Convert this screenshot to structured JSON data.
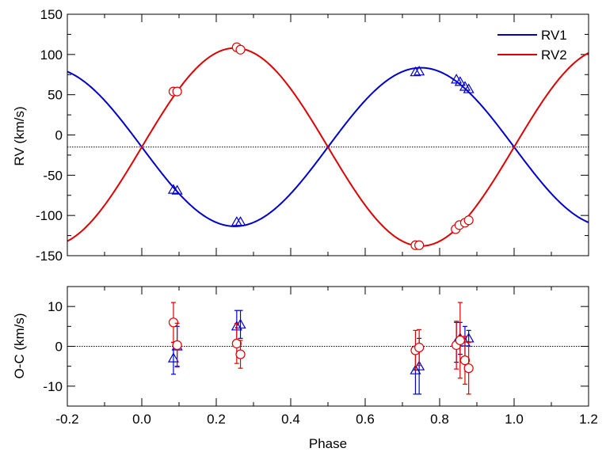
{
  "chart_data": [
    {
      "type": "line",
      "panel": "radial-velocity",
      "xlabel": "",
      "ylabel": "RV (km/s)",
      "xlim": [
        -0.2,
        1.2
      ],
      "ylim": [
        -150,
        150
      ],
      "x_ticks": [
        -0.2,
        0.0,
        0.2,
        0.4,
        0.6,
        0.8,
        1.0,
        1.2
      ],
      "y_ticks": [
        -150,
        -100,
        -50,
        0,
        50,
        100,
        150
      ],
      "y_tick_labels": [
        "-150",
        "-100",
        "-50",
        "0",
        "50",
        "100",
        "150"
      ],
      "systemic_velocity": -15,
      "legend_position": "top-right",
      "series": [
        {
          "name": "RV1",
          "color": "#0000cc",
          "marker": "triangle",
          "curve": {
            "gamma": -15,
            "amplitude": 98.5,
            "sign": -1
          },
          "points": [
            {
              "x": 0.085,
              "y": -68
            },
            {
              "x": 0.095,
              "y": -69
            },
            {
              "x": 0.255,
              "y": -108
            },
            {
              "x": 0.265,
              "y": -108
            },
            {
              "x": 0.735,
              "y": 78
            },
            {
              "x": 0.745,
              "y": 79
            },
            {
              "x": 0.845,
              "y": 69
            },
            {
              "x": 0.855,
              "y": 66
            },
            {
              "x": 0.868,
              "y": 60
            },
            {
              "x": 0.878,
              "y": 57
            }
          ]
        },
        {
          "name": "RV2",
          "color": "#dd0000",
          "marker": "circle",
          "curve": {
            "gamma": -15,
            "amplitude": 123,
            "sign": 1
          },
          "points": [
            {
              "x": 0.085,
              "y": 54
            },
            {
              "x": 0.095,
              "y": 54
            },
            {
              "x": 0.255,
              "y": 109
            },
            {
              "x": 0.265,
              "y": 106
            },
            {
              "x": 0.735,
              "y": -137
            },
            {
              "x": 0.745,
              "y": -137
            },
            {
              "x": 0.843,
              "y": -117
            },
            {
              "x": 0.853,
              "y": -112
            },
            {
              "x": 0.868,
              "y": -109
            },
            {
              "x": 0.878,
              "y": -106
            }
          ]
        }
      ]
    },
    {
      "type": "scatter",
      "panel": "residuals",
      "xlabel": "Phase",
      "ylabel": "O-C (km/s)",
      "xlim": [
        -0.2,
        1.2
      ],
      "ylim": [
        -15,
        15
      ],
      "x_ticks": [
        -0.2,
        0.0,
        0.2,
        0.4,
        0.6,
        0.8,
        1.0,
        1.2
      ],
      "x_tick_labels": [
        "-0.2",
        "0.0",
        "0.2",
        "0.4",
        "0.6",
        "0.8",
        "1.0",
        "1.2"
      ],
      "y_ticks": [
        -10,
        0,
        10
      ],
      "y_tick_labels": [
        "-10",
        "0",
        "10"
      ],
      "series": [
        {
          "name": "RV1",
          "color": "#0000cc",
          "marker": "triangle",
          "points": [
            {
              "x": 0.085,
              "y": -3,
              "err": 4
            },
            {
              "x": 0.095,
              "y": 0,
              "err": 5
            },
            {
              "x": 0.255,
              "y": 5,
              "err": 4
            },
            {
              "x": 0.265,
              "y": 5.5,
              "err": 3.5
            },
            {
              "x": 0.735,
              "y": -6,
              "err": 6
            },
            {
              "x": 0.745,
              "y": -5,
              "err": 7
            },
            {
              "x": 0.845,
              "y": 1,
              "err": 5
            },
            {
              "x": 0.855,
              "y": 2,
              "err": 4
            },
            {
              "x": 0.868,
              "y": 1,
              "err": 4
            },
            {
              "x": 0.878,
              "y": 2,
              "err": 2
            }
          ]
        },
        {
          "name": "RV2",
          "color": "#dd0000",
          "marker": "circle",
          "points": [
            {
              "x": 0.085,
              "y": 6,
              "err": 5
            },
            {
              "x": 0.095,
              "y": 0.3,
              "err": 5.5
            },
            {
              "x": 0.255,
              "y": 0.7,
              "err": 5
            },
            {
              "x": 0.265,
              "y": -2,
              "err": 3.5
            },
            {
              "x": 0.735,
              "y": -1,
              "err": 5
            },
            {
              "x": 0.745,
              "y": -0.3,
              "err": 4.5
            },
            {
              "x": 0.845,
              "y": 0.3,
              "err": 6
            },
            {
              "x": 0.855,
              "y": 1.5,
              "err": 9.5
            },
            {
              "x": 0.868,
              "y": -3.5,
              "err": 6
            },
            {
              "x": 0.878,
              "y": -5.5,
              "err": 6.5
            }
          ]
        }
      ]
    }
  ]
}
